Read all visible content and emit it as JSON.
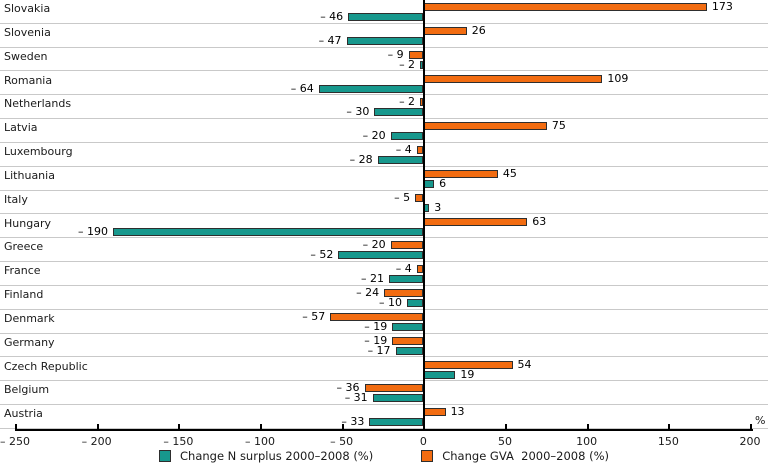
{
  "chart_data": {
    "type": "bar",
    "orientation": "horizontal",
    "title": "",
    "xlabel": "%",
    "grid": "row-separators-only",
    "legend_position": "bottom-center",
    "xlim": [
      -250,
      200
    ],
    "x_ticks": [
      -250,
      -200,
      -150,
      -100,
      -50,
      0,
      50,
      100,
      150,
      200
    ],
    "categories": [
      "Slovakia",
      "Slovenia",
      "Sweden",
      "Romania",
      "Netherlands",
      "Latvia",
      "Luxembourg",
      "Lithuania",
      "Italy",
      "Hungary",
      "Greece",
      "France",
      "Finland",
      "Denmark",
      "Germany",
      "Czech Republic",
      "Belgium",
      "Austria"
    ],
    "series": [
      {
        "name": "Change GVA  2000–2008 (%)",
        "key": "gva",
        "color": "#F26C11",
        "values": [
          173,
          26,
          -9,
          109,
          -2,
          75,
          -4,
          45,
          -5,
          63,
          -20,
          -4,
          -24,
          -57,
          -19,
          54,
          -36,
          13
        ]
      },
      {
        "name": "Change N surplus 2000–2008 (%)",
        "key": "nsurplus",
        "color": "#17988D",
        "values": [
          -46,
          -47,
          -2,
          -64,
          -30,
          -20,
          -28,
          6,
          3,
          -190,
          -52,
          -21,
          -10,
          -19,
          -17,
          19,
          -31,
          -33
        ]
      }
    ],
    "legend": [
      {
        "key": "nsurplus",
        "label": "Change N surplus 2000–2008 (%)",
        "color": "#17988D"
      },
      {
        "key": "gva",
        "label": "Change GVA  2000–2008 (%)",
        "color": "#F26C11"
      }
    ]
  },
  "colors": {
    "bar_border": "#2e2e2e",
    "row_separator": "#c9c9c9",
    "axis": "#000000",
    "text": "#1a1a1a",
    "background": "#ffffff"
  }
}
